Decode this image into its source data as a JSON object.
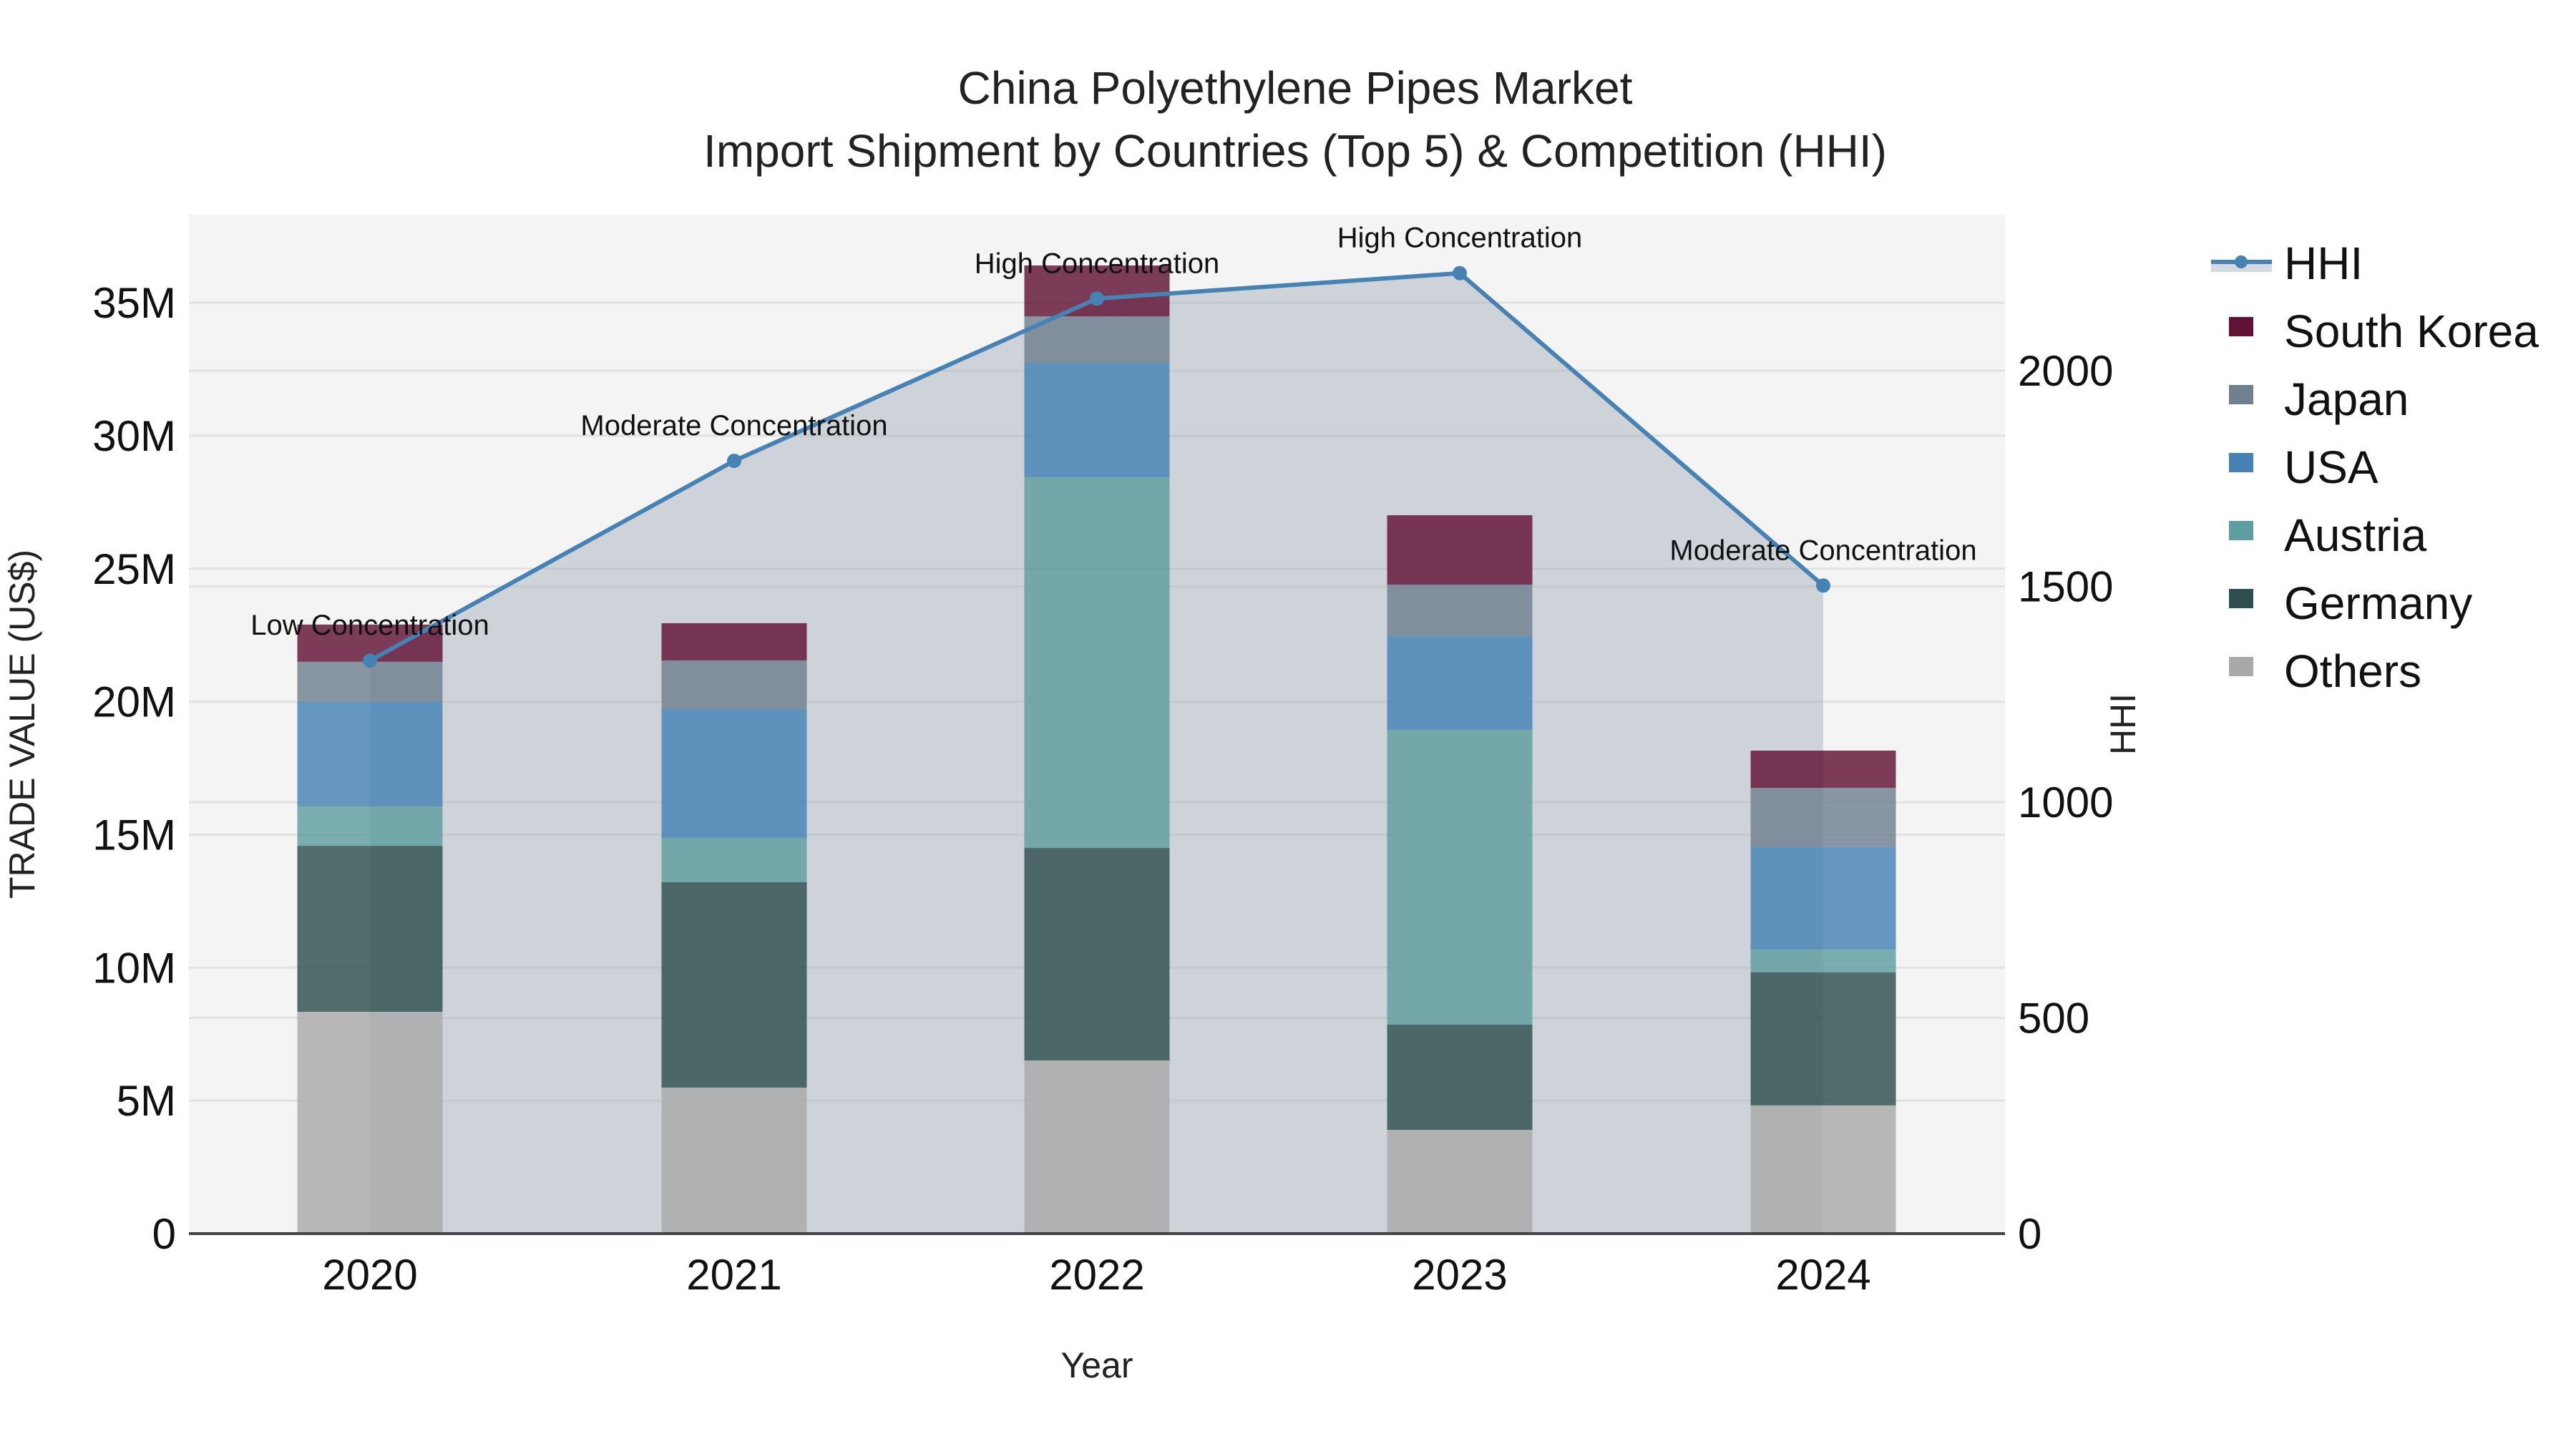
{
  "title": {
    "line1": "China Polyethylene Pipes Market",
    "line2": "Import Shipment by Countries (Top 5) & Competition (HHI)"
  },
  "axes": {
    "x_title": "Year",
    "y_left_title": "TRADE VALUE (US$)",
    "y_right_title": "HHI",
    "y_left_ticks": [
      "0",
      "5M",
      "10M",
      "15M",
      "20M",
      "25M",
      "30M",
      "35M"
    ],
    "y_right_ticks": [
      "0",
      "500",
      "1000",
      "1500",
      "2000"
    ]
  },
  "legend": [
    {
      "name": "HHI",
      "type": "line",
      "color": "#4682b4"
    },
    {
      "name": "South Korea",
      "type": "bar",
      "color": "#621234"
    },
    {
      "name": "Japan",
      "type": "bar",
      "color": "#708090"
    },
    {
      "name": "USA",
      "type": "bar",
      "color": "#4682b4"
    },
    {
      "name": "Austria",
      "type": "bar",
      "color": "#5f9ea0"
    },
    {
      "name": "Germany",
      "type": "bar",
      "color": "#2f4f4f"
    },
    {
      "name": "Others",
      "type": "bar",
      "color": "#a9a9a9"
    }
  ],
  "colors": {
    "plot_bg": "#f4f4f4",
    "hhi_line": "#4682b4",
    "hhi_fill": "rgba(160,170,185,0.45)",
    "gridline": "#e2e2e2",
    "axis_line": "#444444"
  },
  "chart_data": {
    "type": "bar",
    "subtype": "stacked bar with line overlay (secondary axis)",
    "title": "China Polyethylene Pipes Market — Import Shipment by Countries (Top 5) & Competition (HHI)",
    "xlabel": "Year",
    "ylabel": "TRADE VALUE (US$)",
    "y2label": "HHI",
    "categories": [
      "2020",
      "2021",
      "2022",
      "2023",
      "2024"
    ],
    "ylim": [
      0,
      38300000
    ],
    "y2lim": [
      0,
      2360
    ],
    "stack_order_bottom_to_top": [
      "Others",
      "Germany",
      "Austria",
      "USA",
      "Japan",
      "South Korea"
    ],
    "series": [
      {
        "name": "Others",
        "color": "#a9a9a9",
        "values": [
          8340000,
          5490000,
          6510000,
          3900000,
          4820000
        ]
      },
      {
        "name": "Germany",
        "color": "#2f4f4f",
        "values": [
          6240000,
          7720000,
          7990000,
          3960000,
          5000000
        ]
      },
      {
        "name": "Austria",
        "color": "#5f9ea0",
        "values": [
          1480000,
          1670000,
          13940000,
          11080000,
          860000
        ]
      },
      {
        "name": "USA",
        "color": "#4682b4",
        "values": [
          3930000,
          4840000,
          4300000,
          3520000,
          3870000
        ]
      },
      {
        "name": "Japan",
        "color": "#708090",
        "values": [
          1510000,
          1830000,
          1750000,
          1940000,
          2210000
        ]
      },
      {
        "name": "South Korea",
        "color": "#621234",
        "values": [
          1400000,
          1400000,
          1910000,
          2610000,
          1400000
        ]
      }
    ],
    "totals": [
      22900000,
      22950000,
      36400000,
      27010000,
      18160000
    ],
    "line_series": {
      "name": "HHI",
      "axis": "right",
      "values": [
        1328,
        1791,
        2167,
        2226,
        1502
      ],
      "annotations": [
        "Low Concentration",
        "Moderate Concentration",
        "High Concentration",
        "High Concentration",
        "Moderate Concentration"
      ]
    },
    "grid": true,
    "legend_position": "right"
  }
}
